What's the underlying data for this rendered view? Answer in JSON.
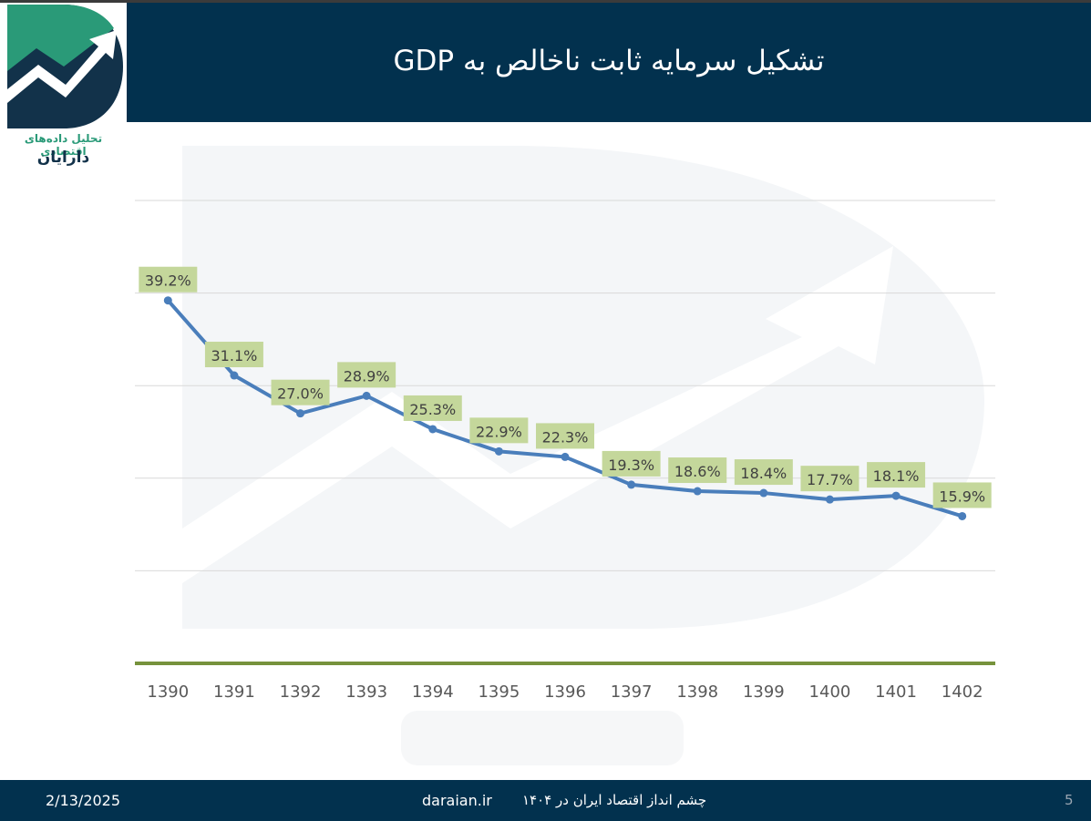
{
  "header": {
    "title": "تشکیل سرمایه ثابت ناخالص به GDP"
  },
  "logo": {
    "line1": "تحلیل داده‌های اقتصادی",
    "line2": "دارایان"
  },
  "footer": {
    "date": "2/13/2025",
    "site": "daraian.ir",
    "text": "چشم انداز اقتصاد ایران  در ۱۴۰۴",
    "page": "5"
  },
  "colors": {
    "navy": "#02314e",
    "line": "#4a7ebb",
    "label_bg": "#c4d79b",
    "axis": "#76923c",
    "logo_green": "#2a9a78"
  },
  "chart_data": {
    "type": "line",
    "title": "تشکیل سرمایه ثابت ناخالص به GDP",
    "categories": [
      "1390",
      "1391",
      "1392",
      "1393",
      "1394",
      "1395",
      "1396",
      "1397",
      "1398",
      "1399",
      "1400",
      "1401",
      "1402"
    ],
    "values": [
      39.2,
      31.1,
      27.0,
      28.9,
      25.3,
      22.9,
      22.3,
      19.3,
      18.6,
      18.4,
      17.7,
      18.1,
      15.9
    ],
    "data_labels": [
      "39.2%",
      "31.1%",
      "27.0%",
      "28.9%",
      "25.3%",
      "22.9%",
      "22.3%",
      "19.3%",
      "18.6%",
      "18.4%",
      "17.7%",
      "18.1%",
      "15.9%"
    ],
    "ylim": [
      0,
      50
    ],
    "grid": true,
    "xlabel": "",
    "ylabel": ""
  }
}
